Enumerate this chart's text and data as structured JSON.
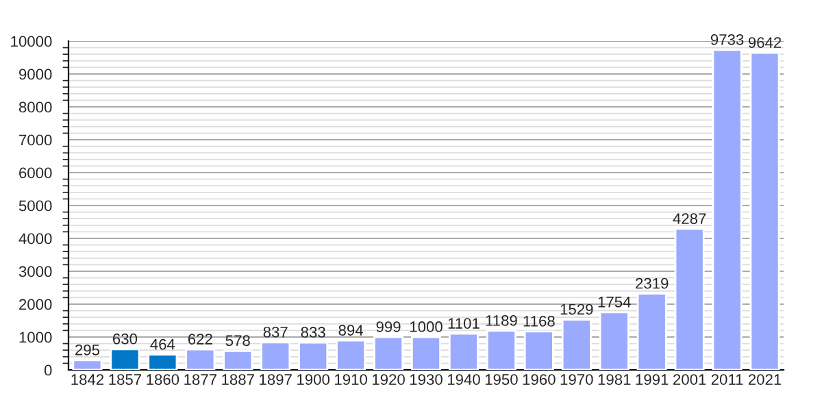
{
  "chart_data": {
    "type": "bar",
    "categories": [
      "1842",
      "1857",
      "1860",
      "1877",
      "1887",
      "1897",
      "1900",
      "1910",
      "1920",
      "1930",
      "1940",
      "1950",
      "1960",
      "1970",
      "1981",
      "1991",
      "2001",
      "2011",
      "2021"
    ],
    "values": [
      295,
      630,
      464,
      622,
      578,
      837,
      833,
      894,
      999,
      1000,
      1101,
      1189,
      1168,
      1529,
      1754,
      2319,
      4287,
      9733,
      9642
    ],
    "colors": [
      "#99aaff",
      "#0077c8",
      "#0077c8",
      "#99aaff",
      "#99aaff",
      "#99aaff",
      "#99aaff",
      "#99aaff",
      "#99aaff",
      "#99aaff",
      "#99aaff",
      "#99aaff",
      "#99aaff",
      "#99aaff",
      "#99aaff",
      "#99aaff",
      "#99aaff",
      "#99aaff",
      "#99aaff"
    ],
    "ylim": [
      0,
      10000
    ],
    "yticks": [
      0,
      1000,
      2000,
      3000,
      4000,
      5000,
      6000,
      7000,
      8000,
      9000,
      10000
    ],
    "grid": "y",
    "data_labels": true
  }
}
